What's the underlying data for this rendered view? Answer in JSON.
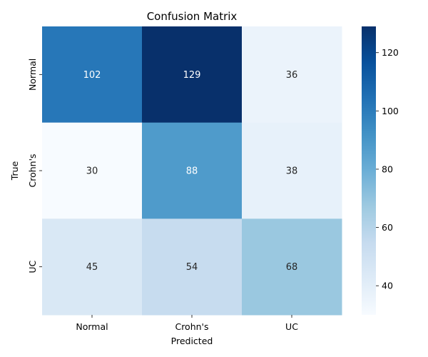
{
  "chart_data": {
    "type": "heatmap",
    "title": "Confusion Matrix",
    "xlabel": "Predicted",
    "ylabel": "True",
    "x_categories": [
      "Normal",
      "Crohn's",
      "UC"
    ],
    "y_categories": [
      "Normal",
      "Crohn's",
      "UC"
    ],
    "values": [
      [
        102,
        129,
        36
      ],
      [
        30,
        88,
        38
      ],
      [
        45,
        54,
        68
      ]
    ],
    "colormap": "Blues",
    "colorbar": {
      "min": 30,
      "max": 129,
      "ticks": [
        40,
        60,
        80,
        100,
        120
      ]
    },
    "annotate": true
  }
}
